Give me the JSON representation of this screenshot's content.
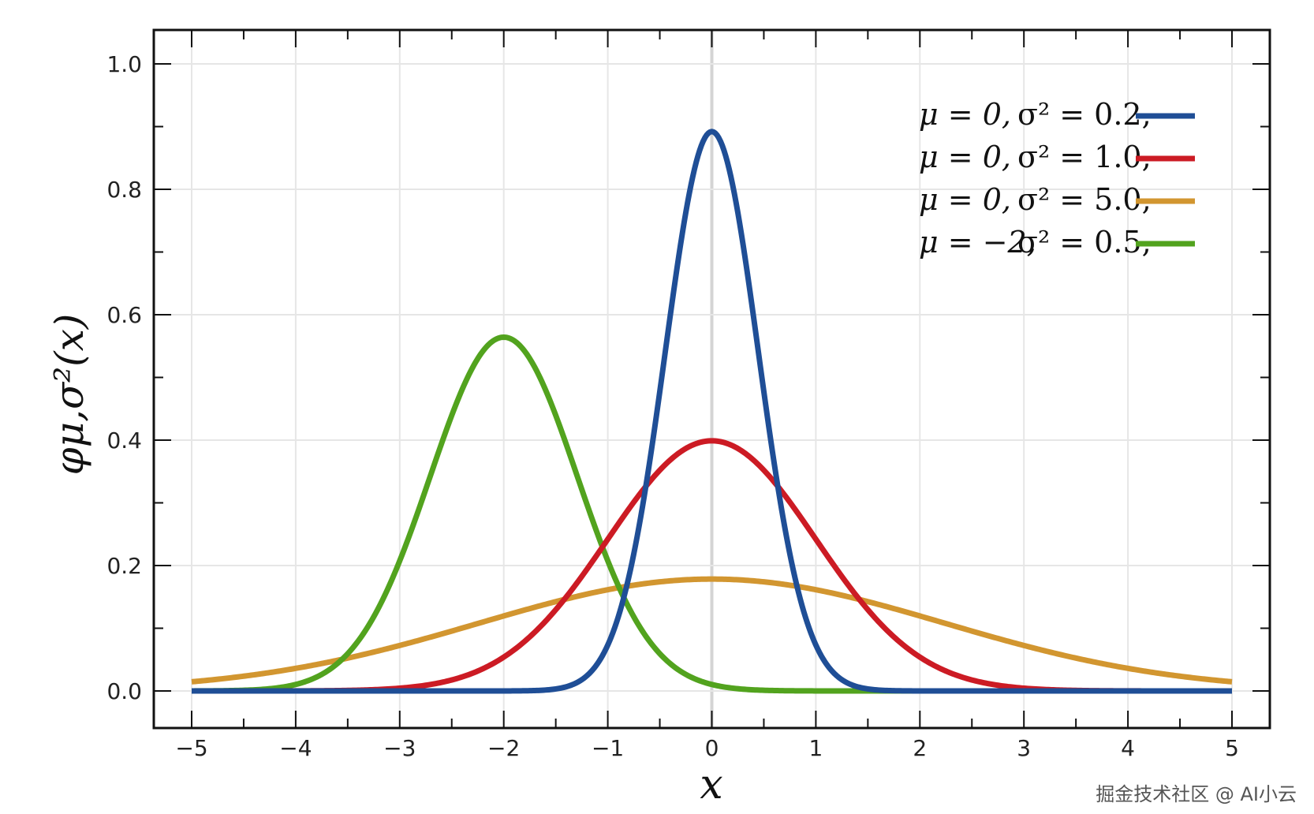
{
  "chart_data": {
    "type": "line",
    "xlim": [
      -5,
      5
    ],
    "ylim": [
      0.0,
      1.0
    ],
    "x_ticks": [
      "−5",
      "−4",
      "−3",
      "−2",
      "−1",
      "0",
      "1",
      "2",
      "3",
      "4",
      "5"
    ],
    "y_ticks": [
      "0.0",
      "0.2",
      "0.4",
      "0.6",
      "0.8",
      "1.0"
    ],
    "xlabel": "x",
    "ylabel": "φμ,σ²(x)",
    "grid": true,
    "legend_position": "top-right",
    "series": [
      {
        "mu": 0,
        "variance": 0.2,
        "color": "#1f4e96",
        "legend": {
          "mu": "μ = 0,",
          "sigma": "σ² = 0.2,"
        }
      },
      {
        "mu": 0,
        "variance": 1.0,
        "color": "#cc1b24",
        "legend": {
          "mu": "μ = 0,",
          "sigma": "σ² = 1.0,"
        }
      },
      {
        "mu": 0,
        "variance": 5.0,
        "color": "#d29630",
        "legend": {
          "mu": "μ = 0,",
          "sigma": "σ² = 5.0,"
        }
      },
      {
        "mu": -2,
        "variance": 0.5,
        "color": "#52a31e",
        "legend": {
          "mu": "μ = −2,",
          "sigma": "σ² = 0.5,"
        }
      }
    ]
  },
  "watermark": "掘金技术社区 @ AI小云"
}
